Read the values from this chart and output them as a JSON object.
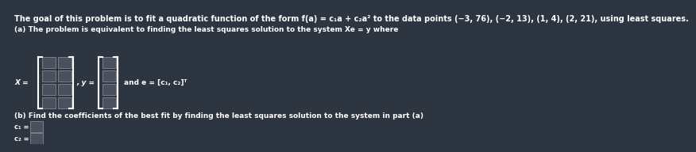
{
  "bg_color": "#2d3540",
  "text_color": "#ffffff",
  "title_line": "The goal of this problem is to fit a quadratic function of the form f(a) = c₁a + c₂a² to the data points (−3, 76), (−2, 13), (1, 4), (2, 21), using least squares.",
  "part_a_line": "(a) The problem is equivalent to finding the least squares solution to the system Xe = y where",
  "x_label": "X =",
  "y_label": ", y =",
  "and_e_label": "and e = [c₁, c₂]ᵀ",
  "part_b_line": "(b) Find the coefficients of the best fit by finding the least squares solution to the system in part (a)",
  "c1_label": "c₁ =",
  "c2_label": "c₂ =",
  "cell_facecolor": "#4a5060",
  "cell_edgecolor": "#888888",
  "bracket_color": "#ffffff",
  "title_fontsize": 7.0,
  "body_fontsize": 6.5,
  "small_fontsize": 6.0
}
